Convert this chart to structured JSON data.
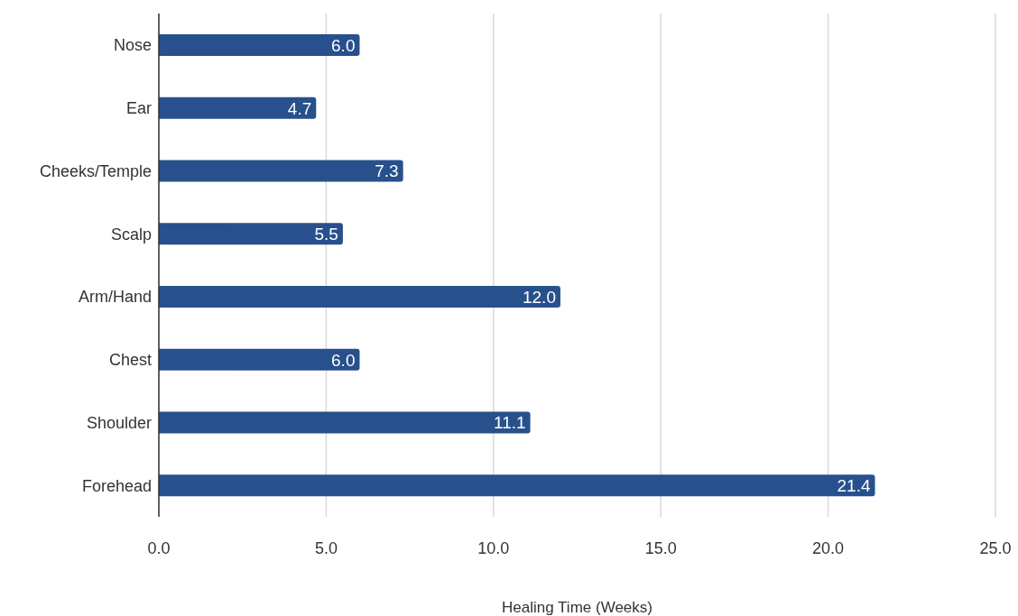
{
  "chart_data": {
    "type": "bar",
    "orientation": "horizontal",
    "xlabel": "Healing Time (Weeks)",
    "categories": [
      "Nose",
      "Ear",
      "Cheeks/Temple",
      "Scalp",
      "Arm/Hand",
      "Chest",
      "Shoulder",
      "Forehead"
    ],
    "values": [
      6.0,
      4.7,
      7.3,
      5.5,
      12.0,
      6.0,
      11.1,
      21.4
    ],
    "value_labels": [
      "6.0",
      "4.7",
      "7.3",
      "5.5",
      "12.0",
      "6.0",
      "11.1",
      "21.4"
    ],
    "color": "#27508c",
    "xlim": [
      0,
      25
    ],
    "xticks": [
      {
        "value": 0,
        "label": "0.0"
      },
      {
        "value": 5,
        "label": "5.0"
      },
      {
        "value": 10,
        "label": "10.0"
      },
      {
        "value": 15,
        "label": "15.0"
      },
      {
        "value": 20,
        "label": "20.0"
      },
      {
        "value": 25,
        "label": "25.0"
      }
    ],
    "grid": "x",
    "legend": false
  }
}
